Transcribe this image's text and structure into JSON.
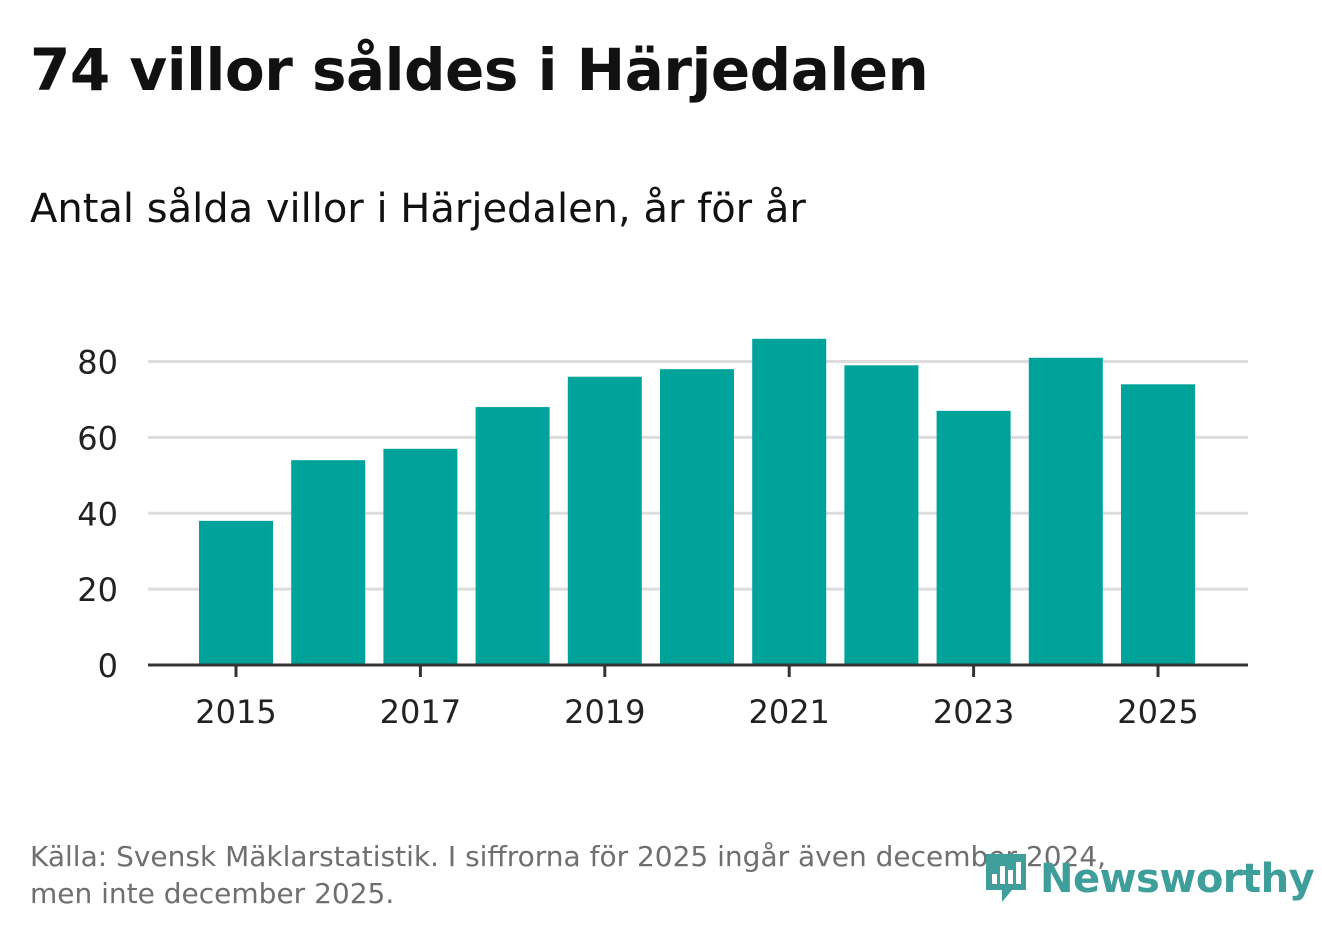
{
  "header": {
    "title": "74 villor såldes i Härjedalen",
    "subtitle": "Antal sålda villor i Härjedalen, år för år"
  },
  "footer": {
    "source_line1": "Källa: Svensk Mäklarstatistik. I siffrorna för 2025 ingår även december 2024,",
    "source_line2": "men inte december 2025."
  },
  "brand": {
    "name": "Newsworthy",
    "color": "#3d9e9a",
    "icon": "newsworthy-logo-icon"
  },
  "colors": {
    "bar": "#00a39a",
    "grid": "#dddddd",
    "axis": "#333333",
    "tick_text": "#222222"
  },
  "chart_data": {
    "type": "bar",
    "title": "Antal sålda villor i Härjedalen, år för år",
    "xlabel": "",
    "ylabel": "",
    "categories": [
      "2015",
      "2016",
      "2017",
      "2018",
      "2019",
      "2020",
      "2021",
      "2022",
      "2023",
      "2024",
      "2025"
    ],
    "values": [
      38,
      54,
      57,
      68,
      76,
      78,
      86,
      79,
      67,
      81,
      74
    ],
    "x_tick_labels": [
      "2015",
      "2017",
      "2019",
      "2021",
      "2023",
      "2025"
    ],
    "y_ticks": [
      0,
      20,
      40,
      60,
      80
    ],
    "ylim": [
      0,
      87
    ],
    "grid": true
  }
}
